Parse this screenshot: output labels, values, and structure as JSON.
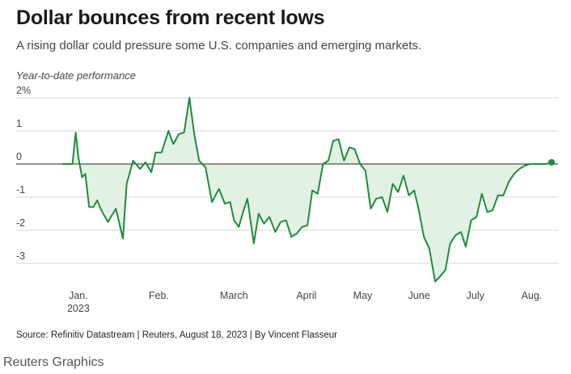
{
  "header": {
    "title": "Dollar bounces from recent lows",
    "subtitle": "A rising dollar could pressure some U.S. companies and emerging markets.",
    "y_axis_caption": "Year-to-date performance"
  },
  "footer": {
    "source": "Source: Refinitiv Datastream | Reuters, August 18, 2023 | By Vincent Flasseur",
    "credit": "Reuters Graphics"
  },
  "colors": {
    "line": "#1e8c3a",
    "fill": "#e3f1e5",
    "grid": "#d6d6d6",
    "zero": "#222222"
  },
  "chart_data": {
    "type": "area",
    "title": "Dollar bounces from recent lows",
    "ylabel": "Year-to-date performance",
    "ylim": [
      -3.6,
      2
    ],
    "y_ticks": [
      {
        "value": 2,
        "label": "2%"
      },
      {
        "value": 1,
        "label": "1"
      },
      {
        "value": 0,
        "label": "0"
      },
      {
        "value": -1,
        "label": "-1"
      },
      {
        "value": -2,
        "label": "-2"
      },
      {
        "value": -3,
        "label": "-3"
      }
    ],
    "x_ticks": [
      {
        "label": "Jan.",
        "sublabel": "2023",
        "x": 0.3
      },
      {
        "label": "Feb.",
        "x": 1.8
      },
      {
        "label": "March",
        "x": 3.2
      },
      {
        "label": "April",
        "x": 4.55
      },
      {
        "label": "May",
        "x": 5.6
      },
      {
        "label": "June",
        "x": 6.65
      },
      {
        "label": "July",
        "x": 7.7
      },
      {
        "label": "Aug.",
        "x": 8.75
      }
    ],
    "grid": true,
    "end_marker": true,
    "series": [
      {
        "name": "",
        "x": [
          0.0,
          0.19,
          0.25,
          0.3,
          0.37,
          0.43,
          0.5,
          0.58,
          0.65,
          0.73,
          0.85,
          1.0,
          1.13,
          1.2,
          1.32,
          1.45,
          1.55,
          1.66,
          1.74,
          1.85,
          1.98,
          2.07,
          2.17,
          2.27,
          2.37,
          2.46,
          2.55,
          2.67,
          2.79,
          2.92,
          3.03,
          3.13,
          3.2,
          3.29,
          3.38,
          3.45,
          3.57,
          3.66,
          3.76,
          3.86,
          3.97,
          4.07,
          4.17,
          4.27,
          4.37,
          4.47,
          4.57,
          4.66,
          4.76,
          4.86,
          4.96,
          5.05,
          5.15,
          5.25,
          5.35,
          5.45,
          5.55,
          5.65,
          5.75,
          5.85,
          5.96,
          6.06,
          6.16,
          6.26,
          6.36,
          6.46,
          6.56,
          6.64,
          6.74,
          6.84,
          6.95,
          7.04,
          7.14,
          7.23,
          7.33,
          7.43,
          7.52,
          7.62,
          7.72,
          7.82,
          7.92,
          8.02,
          8.12,
          8.22,
          8.32,
          8.42,
          8.52,
          8.62,
          8.72,
          8.82,
          8.92,
          9.02,
          9.12
        ],
        "values": [
          0.0,
          0.0,
          0.95,
          0.2,
          -0.4,
          -0.3,
          -1.3,
          -1.3,
          -1.1,
          -1.4,
          -1.75,
          -1.35,
          -2.25,
          -0.6,
          0.1,
          -0.15,
          0.05,
          -0.25,
          0.35,
          0.35,
          1.0,
          0.6,
          0.9,
          0.95,
          2.0,
          0.9,
          0.1,
          -0.1,
          -1.15,
          -0.75,
          -1.2,
          -1.15,
          -1.7,
          -1.9,
          -1.4,
          -1.05,
          -2.4,
          -1.5,
          -1.8,
          -1.6,
          -2.05,
          -1.75,
          -1.7,
          -2.2,
          -2.1,
          -1.9,
          -1.85,
          -0.8,
          -0.9,
          0.0,
          0.1,
          0.7,
          0.75,
          0.1,
          0.5,
          0.45,
          0.0,
          -0.2,
          -1.35,
          -1.05,
          -1.0,
          -1.45,
          -0.6,
          -0.85,
          -0.35,
          -0.95,
          -0.8,
          -1.35,
          -2.2,
          -2.55,
          -3.55,
          -3.4,
          -3.2,
          -2.4,
          -2.15,
          -2.05,
          -2.5,
          -1.7,
          -1.6,
          -0.9,
          -1.45,
          -1.4,
          -0.95,
          -0.95,
          -0.55,
          -0.3,
          -0.15,
          -0.05,
          0.0,
          0.0,
          0.0,
          0.0,
          0.05
        ]
      }
    ]
  }
}
